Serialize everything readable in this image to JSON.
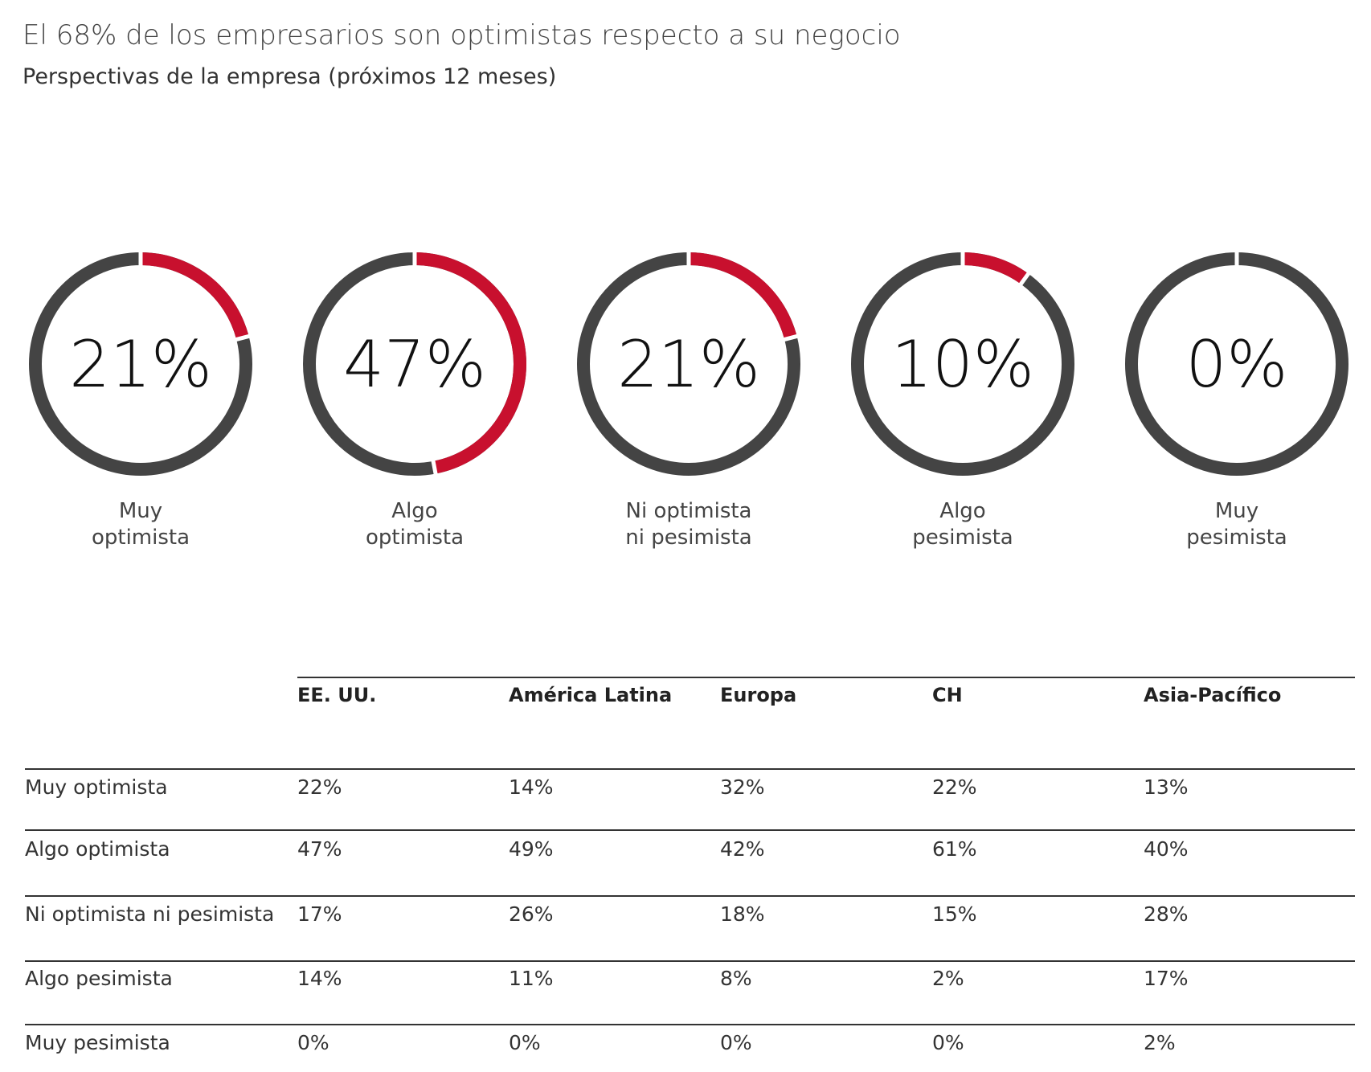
{
  "title": "El 68% de los empresarios son optimistas respecto a su negocio",
  "subtitle": "Perspectivas de la empresa (próximos 12 meses)",
  "chart_data": {
    "type": "donut",
    "categories": [
      "Muy\noptimista",
      "Algo\noptimista",
      "Ni optimista\nni pesimista",
      "Algo\npesimista",
      "Muy\npesimista"
    ],
    "values": [
      21,
      47,
      21,
      10,
      0
    ],
    "value_labels": [
      "21%",
      "47%",
      "21%",
      "10%",
      "0%"
    ],
    "color": "#c8102e",
    "track_color": "#444444"
  },
  "table": {
    "columns": [
      "EE. UU.",
      "América Latina",
      "Europa",
      "CH",
      "Asia-Pacífico"
    ],
    "rows": [
      [
        "Muy optimista",
        "22%",
        "14%",
        "32%",
        "22%",
        "13%"
      ],
      [
        "Algo optimista",
        "47%",
        "49%",
        "42%",
        "61%",
        "40%"
      ],
      [
        "Ni optimista ni pesimista",
        "17%",
        "26%",
        "18%",
        "15%",
        "28%"
      ],
      [
        "Algo pesimista",
        "14%",
        "11%",
        "8%",
        "2%",
        "17%"
      ],
      [
        "Muy pesimista",
        "0%",
        "0%",
        "0%",
        "0%",
        "2%"
      ]
    ]
  }
}
